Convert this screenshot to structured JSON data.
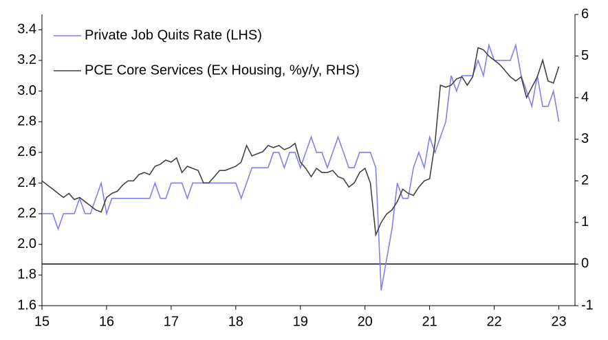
{
  "chart_data": {
    "type": "line",
    "xlim": [
      15,
      23.25
    ],
    "xticks": [
      15,
      16,
      17,
      18,
      19,
      20,
      21,
      22,
      23
    ],
    "ylim": [
      1.6,
      3.5
    ],
    "yticks": [
      1.6,
      1.8,
      {
        "value": 2,
        "label": "2.0"
      },
      2.2,
      2.4,
      2.6,
      2.8,
      {
        "value": 3,
        "label": "3.0"
      },
      3.2,
      3.4
    ],
    "y2lim": [
      -1,
      6
    ],
    "y2ticks": [
      -1,
      0,
      1,
      2,
      3,
      4,
      5,
      6
    ],
    "reference_line": {
      "axis": "y2",
      "value": 0
    },
    "legend": "upper left",
    "x": [
      15,
      15.083,
      15.167,
      15.25,
      15.333,
      15.417,
      15.5,
      15.583,
      15.667,
      15.75,
      15.833,
      15.917,
      16,
      16.083,
      16.167,
      16.25,
      16.333,
      16.417,
      16.5,
      16.583,
      16.667,
      16.75,
      16.833,
      16.917,
      17,
      17.083,
      17.167,
      17.25,
      17.333,
      17.417,
      17.5,
      17.583,
      17.667,
      17.75,
      17.833,
      17.917,
      18,
      18.083,
      18.167,
      18.25,
      18.333,
      18.417,
      18.5,
      18.583,
      18.667,
      18.75,
      18.833,
      18.917,
      19,
      19.083,
      19.167,
      19.25,
      19.333,
      19.417,
      19.5,
      19.583,
      19.667,
      19.75,
      19.833,
      19.917,
      20,
      20.083,
      20.167,
      20.25,
      20.333,
      20.417,
      20.5,
      20.583,
      20.667,
      20.75,
      20.833,
      20.917,
      21,
      21.083,
      21.167,
      21.25,
      21.333,
      21.417,
      21.5,
      21.583,
      21.667,
      21.75,
      21.833,
      21.917,
      22,
      22.083,
      22.167,
      22.25,
      22.333,
      22.417,
      22.5,
      22.583,
      22.667,
      22.75,
      22.833,
      22.917,
      23
    ],
    "series": [
      {
        "name": "Private Job Quits Rate (LHS)",
        "color": "#7f7ff0",
        "values": [
          2.2,
          2.2,
          2.2,
          2.1,
          2.2,
          2.2,
          2.2,
          2.3,
          2.2,
          2.2,
          2.3,
          2.4,
          2.2,
          2.3,
          2.3,
          2.3,
          2.3,
          2.3,
          2.3,
          2.3,
          2.3,
          2.4,
          2.3,
          2.3,
          2.4,
          2.4,
          2.4,
          2.3,
          2.4,
          2.4,
          2.4,
          2.4,
          2.4,
          2.4,
          2.4,
          2.4,
          2.4,
          2.3,
          2.4,
          2.5,
          2.5,
          2.5,
          2.5,
          2.6,
          2.6,
          2.5,
          2.6,
          2.6,
          2.5,
          2.6,
          2.7,
          2.6,
          2.6,
          2.5,
          2.6,
          2.7,
          2.6,
          2.5,
          2.5,
          2.6,
          2.6,
          2.6,
          2.5,
          1.7,
          1.9,
          2.1,
          2.4,
          2.3,
          2.3,
          2.5,
          2.6,
          2.5,
          2.7,
          2.6,
          2.7,
          2.8,
          3.1,
          3.0,
          3.1,
          3.1,
          3.1,
          3.2,
          3.1,
          3.3,
          3.2,
          3.2,
          3.2,
          3.2,
          3.3,
          3.1,
          3.0,
          2.9,
          3.1,
          2.9,
          2.9,
          3.0,
          2.8
        ]
      },
      {
        "name": "PCE Core Services (Ex Housing, %y/y, RHS)",
        "color": "#404040",
        "axis": "y2",
        "values": [
          2.0,
          1.9,
          1.8,
          1.7,
          1.6,
          1.7,
          1.55,
          1.6,
          1.5,
          1.4,
          1.3,
          1.25,
          1.6,
          1.7,
          1.75,
          1.9,
          2.0,
          2.0,
          2.15,
          2.2,
          2.15,
          2.35,
          2.4,
          2.5,
          2.45,
          2.55,
          2.2,
          2.35,
          2.3,
          2.25,
          1.95,
          1.95,
          2.1,
          2.25,
          2.25,
          2.3,
          2.35,
          2.45,
          2.85,
          2.6,
          2.65,
          2.7,
          2.85,
          2.8,
          2.85,
          2.75,
          2.8,
          2.9,
          2.45,
          2.3,
          2.1,
          2.3,
          2.2,
          2.2,
          2.25,
          2.1,
          2.05,
          1.85,
          1.95,
          2.2,
          2.3,
          1.95,
          0.7,
          1.0,
          1.2,
          1.3,
          1.5,
          1.8,
          1.7,
          1.65,
          1.85,
          2.0,
          2.05,
          2.9,
          4.3,
          4.25,
          4.3,
          4.45,
          4.5,
          4.3,
          4.5,
          5.2,
          5.15,
          5.0,
          4.9,
          4.8,
          4.65,
          4.5,
          4.4,
          4.5,
          4.0,
          4.25,
          4.5,
          4.9,
          4.4,
          4.35,
          4.75
        ]
      }
    ]
  }
}
